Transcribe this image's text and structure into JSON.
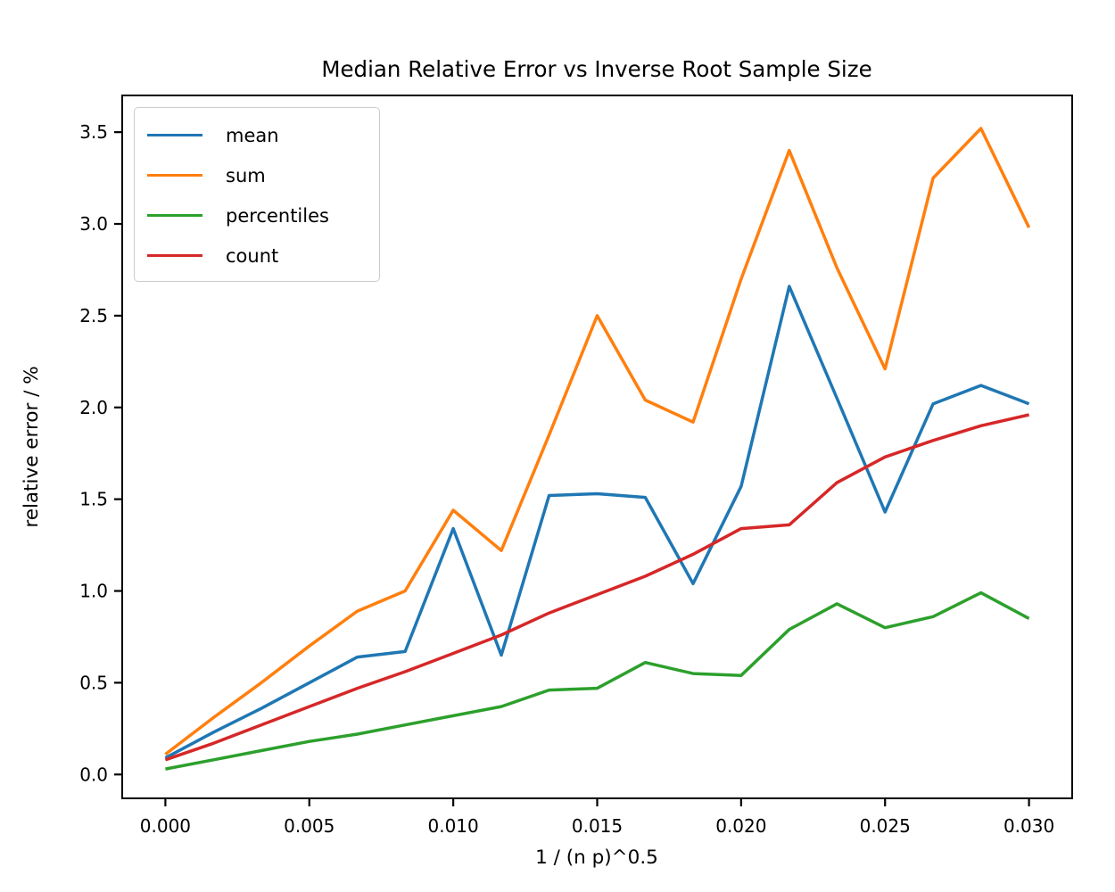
{
  "figure": {
    "title": "Median Relative Error vs Inverse Root Sample Size",
    "xlabel": "1 / (n p)^0.5",
    "ylabel": "relative error / %"
  },
  "legend": {
    "items": [
      {
        "label": "mean",
        "color": "#1f77b4"
      },
      {
        "label": "sum",
        "color": "#ff7f0e"
      },
      {
        "label": "percentiles",
        "color": "#2ca02c"
      },
      {
        "label": "count",
        "color": "#d62728"
      }
    ]
  },
  "axes": {
    "x_tick_labels": [
      "0.000",
      "0.005",
      "0.010",
      "0.015",
      "0.020",
      "0.025",
      "0.030"
    ],
    "x_tick_values": [
      0.0,
      0.005,
      0.01,
      0.015,
      0.02,
      0.025,
      0.03
    ],
    "y_tick_labels": [
      "0.0",
      "0.5",
      "1.0",
      "1.5",
      "2.0",
      "2.5",
      "3.0",
      "3.5"
    ],
    "y_tick_values": [
      0.0,
      0.5,
      1.0,
      1.5,
      2.0,
      2.5,
      3.0,
      3.5
    ]
  },
  "chart_data": {
    "type": "line",
    "title": "Median Relative Error vs Inverse Root Sample Size",
    "xlabel": "1 / (n p)^0.5",
    "ylabel": "relative error / %",
    "grid": false,
    "legend_position": "upper left",
    "xlim": [
      -0.0015,
      0.0315
    ],
    "ylim": [
      -0.13,
      3.7
    ],
    "x": [
      0.0,
      0.00167,
      0.00333,
      0.005,
      0.00667,
      0.00833,
      0.01,
      0.01167,
      0.01333,
      0.015,
      0.01667,
      0.01833,
      0.02,
      0.02167,
      0.02333,
      0.025,
      0.02667,
      0.02833,
      0.03
    ],
    "series": [
      {
        "name": "mean",
        "color": "#1f77b4",
        "values": [
          0.09,
          0.23,
          0.36,
          0.5,
          0.64,
          0.67,
          1.34,
          0.65,
          1.52,
          1.53,
          1.51,
          1.04,
          1.57,
          2.66,
          2.05,
          1.43,
          2.02,
          2.12,
          2.02
        ]
      },
      {
        "name": "sum",
        "color": "#ff7f0e",
        "values": [
          0.11,
          0.31,
          0.5,
          0.7,
          0.89,
          1.0,
          1.44,
          1.22,
          1.85,
          2.5,
          2.04,
          1.92,
          2.7,
          3.4,
          2.76,
          2.21,
          3.25,
          3.52,
          2.98
        ]
      },
      {
        "name": "percentiles",
        "color": "#2ca02c",
        "values": [
          0.03,
          0.08,
          0.13,
          0.18,
          0.22,
          0.27,
          0.32,
          0.37,
          0.46,
          0.47,
          0.61,
          0.55,
          0.54,
          0.79,
          0.93,
          0.8,
          0.86,
          0.99,
          0.85
        ]
      },
      {
        "name": "count",
        "color": "#d62728",
        "values": [
          0.08,
          0.17,
          0.27,
          0.37,
          0.47,
          0.56,
          0.66,
          0.76,
          0.88,
          0.98,
          1.08,
          1.2,
          1.34,
          1.36,
          1.59,
          1.73,
          1.82,
          1.9,
          1.96
        ]
      }
    ]
  }
}
